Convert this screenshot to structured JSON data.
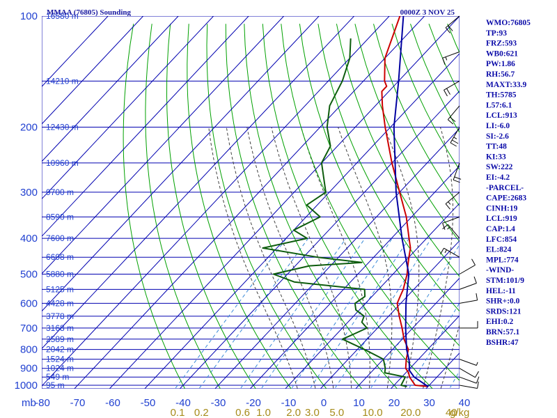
{
  "chart_data": {
    "type": "line",
    "title": "MMAA (76805) Sounding",
    "valid_time": "0000Z  3 NOV 25",
    "pressure_unit": "mb",
    "mixing_ratio_unit": "g/kg",
    "pressure_levels": [
      100,
      200,
      300,
      400,
      500,
      600,
      700,
      800,
      900,
      1000
    ],
    "temperature_ticks": [
      -80,
      -70,
      -60,
      -50,
      -40,
      -30,
      -20,
      -10,
      0,
      10,
      20,
      30,
      40
    ],
    "mixing_ratio_ticks": [
      "0.1",
      "0.2",
      "0.6",
      "1.0",
      "2.0",
      "3.0",
      "5.0",
      "10.0",
      "20.0",
      "40"
    ],
    "height_labels": [
      {
        "p": 100,
        "label": "16580 m"
      },
      {
        "p": 150,
        "label": "14210 m"
      },
      {
        "p": 200,
        "label": "12430 m"
      },
      {
        "p": 250,
        "label": "10960 m"
      },
      {
        "p": 300,
        "label": "9700 m"
      },
      {
        "p": 350,
        "label": "8590 m"
      },
      {
        "p": 400,
        "label": "7600 m"
      },
      {
        "p": 450,
        "label": "6698 m"
      },
      {
        "p": 500,
        "label": "5880 m"
      },
      {
        "p": 550,
        "label": "5125 m"
      },
      {
        "p": 600,
        "label": "4428 m"
      },
      {
        "p": 650,
        "label": "3778 m"
      },
      {
        "p": 700,
        "label": "3168 m"
      },
      {
        "p": 750,
        "label": "2589 m"
      },
      {
        "p": 800,
        "label": "2042 m"
      },
      {
        "p": 850,
        "label": "1524 m"
      },
      {
        "p": 900,
        "label": "1024 m"
      },
      {
        "p": 950,
        "label": "549 m"
      },
      {
        "p": 1000,
        "label": "95 m"
      }
    ],
    "series": [
      {
        "role": "temperature",
        "color": "#cc0000",
        "points": [
          [
            1008,
            30
          ],
          [
            1000,
            26
          ],
          [
            950,
            22.2
          ],
          [
            925,
            20.8
          ],
          [
            900,
            18.8
          ],
          [
            850,
            16.5
          ],
          [
            800,
            14.5
          ],
          [
            750,
            10.5
          ],
          [
            700,
            7
          ],
          [
            650,
            3
          ],
          [
            600,
            -1
          ],
          [
            575,
            -2
          ],
          [
            550,
            -3
          ],
          [
            500,
            -6
          ],
          [
            475,
            -8
          ],
          [
            450,
            -10
          ],
          [
            425,
            -12
          ],
          [
            400,
            -15
          ],
          [
            350,
            -21.5
          ],
          [
            300,
            -30
          ],
          [
            250,
            -40
          ],
          [
            200,
            -51.5
          ],
          [
            175,
            -58
          ],
          [
            160,
            -62
          ],
          [
            155,
            -62
          ],
          [
            150,
            -64
          ],
          [
            130,
            -70
          ],
          [
            100,
            -77
          ]
        ]
      },
      {
        "role": "dewpoint",
        "color": "#0d5c0d",
        "points": [
          [
            1008,
            24
          ],
          [
            1000,
            22
          ],
          [
            950,
            21
          ],
          [
            925,
            14
          ],
          [
            900,
            13
          ],
          [
            850,
            10
          ],
          [
            800,
            2
          ],
          [
            750,
            -7
          ],
          [
            725,
            -5
          ],
          [
            700,
            -3
          ],
          [
            675,
            -6
          ],
          [
            650,
            -7
          ],
          [
            625,
            -11
          ],
          [
            600,
            -13
          ],
          [
            575,
            -12
          ],
          [
            550,
            -14
          ],
          [
            525,
            -36
          ],
          [
            500,
            -44
          ],
          [
            475,
            -36
          ],
          [
            465,
            -22
          ],
          [
            450,
            -36
          ],
          [
            425,
            -54
          ],
          [
            400,
            -44
          ],
          [
            380,
            -50
          ],
          [
            350,
            -46
          ],
          [
            325,
            -53
          ],
          [
            300,
            -51
          ],
          [
            250,
            -60
          ],
          [
            225,
            -62
          ],
          [
            200,
            -68
          ],
          [
            175,
            -73
          ],
          [
            150,
            -76
          ],
          [
            130,
            -80
          ],
          [
            115,
            -85
          ]
        ]
      },
      {
        "role": "parcel",
        "color": "#0000a0",
        "points": [
          [
            1008,
            30
          ],
          [
            950,
            23.5
          ],
          [
            913,
            20.5
          ],
          [
            854,
            17.5
          ],
          [
            800,
            14
          ],
          [
            700,
            8
          ],
          [
            600,
            1.5
          ],
          [
            500,
            -5.5
          ],
          [
            400,
            -17
          ],
          [
            300,
            -31
          ],
          [
            200,
            -49
          ],
          [
            150,
            -60
          ],
          [
            100,
            -76
          ]
        ]
      }
    ],
    "indices": [
      "WMO:76805",
      "TP:93",
      "FRZ:593",
      "WB0:621",
      "PW:1.86",
      "RH:56.7",
      "MAXT:33.9",
      "TH:5785",
      "L57:6.1",
      "LCL:913",
      "LI:-6.0",
      "SI:-2.6",
      "TT:48",
      "KI:33",
      "SW:222",
      "EI:-4.2",
      "-PARCEL-",
      "CAPE:2683",
      "CINH:19",
      "LCL:919",
      "CAP:1.4",
      "LFC:854",
      "EL:824",
      "MPL:774",
      "-WIND-",
      "STM:101/9",
      "HEL:-11",
      "SHR+:0.0",
      "SRDS:121",
      "EHI:0.2",
      "BRN:57.1",
      "BSHR:47"
    ],
    "wind_barbs": [
      {
        "p": 1000,
        "dir": 100,
        "spd": 10
      },
      {
        "p": 950,
        "dir": 110,
        "spd": 10
      },
      {
        "p": 900,
        "dir": 120,
        "spd": 10
      },
      {
        "p": 850,
        "dir": 110,
        "spd": 5
      },
      {
        "p": 700,
        "dir": 90,
        "spd": 10
      },
      {
        "p": 600,
        "dir": 80,
        "spd": 10
      },
      {
        "p": 550,
        "dir": 70,
        "spd": 10
      },
      {
        "p": 500,
        "dir": 60,
        "spd": 10
      },
      {
        "p": 450,
        "dir": 300,
        "spd": 15
      },
      {
        "p": 400,
        "dir": 320,
        "spd": 15
      },
      {
        "p": 350,
        "dir": 250,
        "spd": 10
      },
      {
        "p": 300,
        "dir": 230,
        "spd": 15
      },
      {
        "p": 250,
        "dir": 200,
        "spd": 20
      },
      {
        "p": 200,
        "dir": 210,
        "spd": 25
      },
      {
        "p": 175,
        "dir": 220,
        "spd": 20
      },
      {
        "p": 150,
        "dir": 240,
        "spd": 20
      },
      {
        "p": 125,
        "dir": 250,
        "spd": 15
      },
      {
        "p": 100,
        "dir": 230,
        "spd": 20
      }
    ],
    "colors": {
      "grid": "#0000b0",
      "dry_adiabat": "#00a000",
      "moist_adiabat": "#404040",
      "mixing_ratio": "#3a8ad8",
      "axis_text": "#1f3fd0",
      "mixing_text": "#a68c1a",
      "title_text": "#1818a0",
      "index_text": "#0a0aa8"
    }
  }
}
